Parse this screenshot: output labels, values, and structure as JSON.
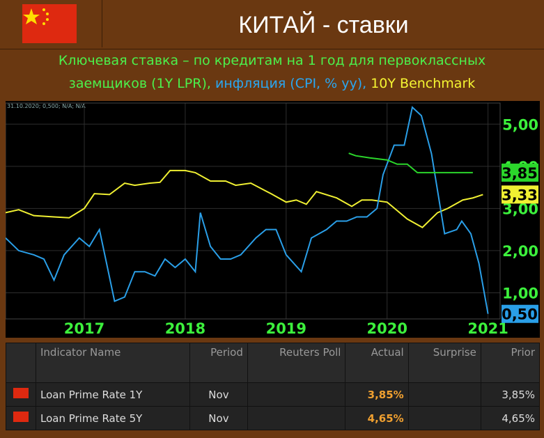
{
  "header": {
    "title": "КИТАЙ - ставки",
    "subtitle_line1": "Ключевая ставка – по кредитам на 1 год для первоклассных",
    "subtitle_lpr": "заемщиков (1Y LPR),",
    "subtitle_cpi": "инфляция (CPI, % yy),",
    "subtitle_bond": "10Y Benchmark"
  },
  "chart_data": {
    "type": "line",
    "annotation": "31.10.2020; 0,500; N/A; N/A",
    "xlim": [
      2016.22,
      2021.12
    ],
    "xticks": [
      2017,
      2018,
      2019,
      2020,
      2021
    ],
    "ylim": [
      0.38,
      5.5
    ],
    "yticks": [
      {
        "value": 1,
        "label": "1,00"
      },
      {
        "value": 2,
        "label": "2,00"
      },
      {
        "value": 3,
        "label": "3,00"
      },
      {
        "value": 4,
        "label": "4,00"
      },
      {
        "value": 5,
        "label": "5,00"
      }
    ],
    "grid": true,
    "series": [
      {
        "name": "10Y Benchmark",
        "color": "#f0f032",
        "x": [
          2016.22,
          2016.35,
          2016.5,
          2016.7,
          2016.85,
          2017.0,
          2017.1,
          2017.25,
          2017.4,
          2017.5,
          2017.65,
          2017.75,
          2017.85,
          2018.0,
          2018.1,
          2018.25,
          2018.4,
          2018.5,
          2018.65,
          2018.85,
          2019.0,
          2019.1,
          2019.2,
          2019.3,
          2019.5,
          2019.65,
          2019.75,
          2019.85,
          2020.0,
          2020.1,
          2020.2,
          2020.35,
          2020.5,
          2020.6,
          2020.75,
          2020.85,
          2020.95
        ],
        "values": [
          2.9,
          2.97,
          2.83,
          2.8,
          2.78,
          3.0,
          3.35,
          3.33,
          3.6,
          3.55,
          3.6,
          3.62,
          3.9,
          3.9,
          3.85,
          3.65,
          3.65,
          3.55,
          3.6,
          3.35,
          3.15,
          3.2,
          3.1,
          3.4,
          3.25,
          3.05,
          3.2,
          3.2,
          3.15,
          2.95,
          2.75,
          2.55,
          2.9,
          3.0,
          3.2,
          3.25,
          3.33
        ],
        "end_label": {
          "value": 3.33,
          "label": "3,33"
        }
      },
      {
        "name": "CPI",
        "color": "#2a9fe8",
        "x": [
          2016.22,
          2016.35,
          2016.5,
          2016.6,
          2016.7,
          2016.8,
          2016.95,
          2017.05,
          2017.15,
          2017.3,
          2017.4,
          2017.5,
          2017.6,
          2017.7,
          2017.8,
          2017.9,
          2018.0,
          2018.1,
          2018.15,
          2018.25,
          2018.35,
          2018.45,
          2018.55,
          2018.7,
          2018.8,
          2018.9,
          2019.0,
          2019.15,
          2019.25,
          2019.4,
          2019.5,
          2019.6,
          2019.7,
          2019.8,
          2019.9,
          2019.96,
          2020.07,
          2020.17,
          2020.25,
          2020.34,
          2020.44,
          2020.57,
          2020.69,
          2020.74,
          2020.83,
          2020.91,
          2021.0
        ],
        "values": [
          2.3,
          2.0,
          1.9,
          1.8,
          1.3,
          1.9,
          2.3,
          2.1,
          2.5,
          0.8,
          0.9,
          1.5,
          1.5,
          1.4,
          1.8,
          1.6,
          1.8,
          1.5,
          2.9,
          2.1,
          1.8,
          1.8,
          1.9,
          2.3,
          2.5,
          2.5,
          1.9,
          1.5,
          2.3,
          2.5,
          2.7,
          2.7,
          2.8,
          2.8,
          3.0,
          3.8,
          4.5,
          4.5,
          5.4,
          5.2,
          4.3,
          2.4,
          2.5,
          2.7,
          2.4,
          1.7,
          0.5
        ],
        "end_label": {
          "value": 0.5,
          "label": "0,50"
        }
      },
      {
        "name": "1Y LPR",
        "color": "#2bd62b",
        "x": [
          2019.62,
          2019.69,
          2019.83,
          2020.0,
          2020.1,
          2020.2,
          2020.3,
          2020.85
        ],
        "values": [
          4.31,
          4.25,
          4.2,
          4.15,
          4.05,
          4.05,
          3.85,
          3.85
        ],
        "end_label": {
          "value": 3.85,
          "label": "3,85"
        }
      }
    ]
  },
  "table": {
    "columns": [
      "Indicator Name",
      "Period",
      "Reuters Poll",
      "Actual",
      "Surprise",
      "Prior"
    ],
    "rows": [
      {
        "name": "Loan Prime Rate 1Y",
        "period": "Nov",
        "actual": "3,85%",
        "prior": "3,85%"
      },
      {
        "name": "Loan Prime Rate 5Y",
        "period": "Nov",
        "actual": "4,65%",
        "prior": "4,65%"
      }
    ]
  }
}
